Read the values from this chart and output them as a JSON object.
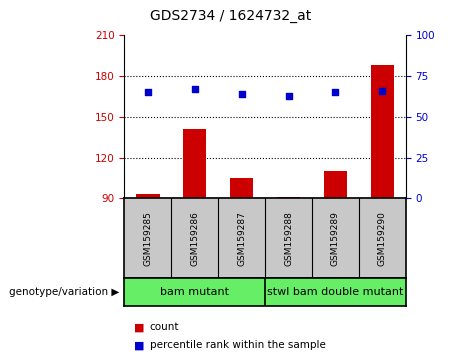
{
  "title": "GDS2734 / 1624732_at",
  "samples": [
    "GSM159285",
    "GSM159286",
    "GSM159287",
    "GSM159288",
    "GSM159289",
    "GSM159290"
  ],
  "counts": [
    93,
    141,
    105,
    91,
    110,
    188
  ],
  "percentile_ranks": [
    65,
    67,
    64,
    63,
    65,
    66
  ],
  "ylim_left": [
    90,
    210
  ],
  "ylim_right": [
    0,
    100
  ],
  "yticks_left": [
    90,
    120,
    150,
    180,
    210
  ],
  "yticks_right": [
    0,
    25,
    50,
    75,
    100
  ],
  "groups": [
    {
      "label": "bam mutant",
      "start": 0,
      "end": 2,
      "color": "#90ee90"
    },
    {
      "label": "stwl bam double mutant",
      "start": 3,
      "end": 5,
      "color": "#90ee90"
    }
  ],
  "group_label": "genotype/variation",
  "bar_color": "#cc0000",
  "dot_color": "#0000cc",
  "bar_width": 0.5,
  "background_plot": "#ffffff",
  "background_sample": "#c8c8c8",
  "background_group": "#66ee66",
  "legend_items": [
    "count",
    "percentile rank within the sample"
  ],
  "left_label_color": "#cc0000",
  "right_label_color": "#0000cc",
  "title_fontsize": 10,
  "tick_fontsize": 7.5,
  "sample_fontsize": 6.5,
  "group_fontsize": 8,
  "legend_fontsize": 7.5
}
